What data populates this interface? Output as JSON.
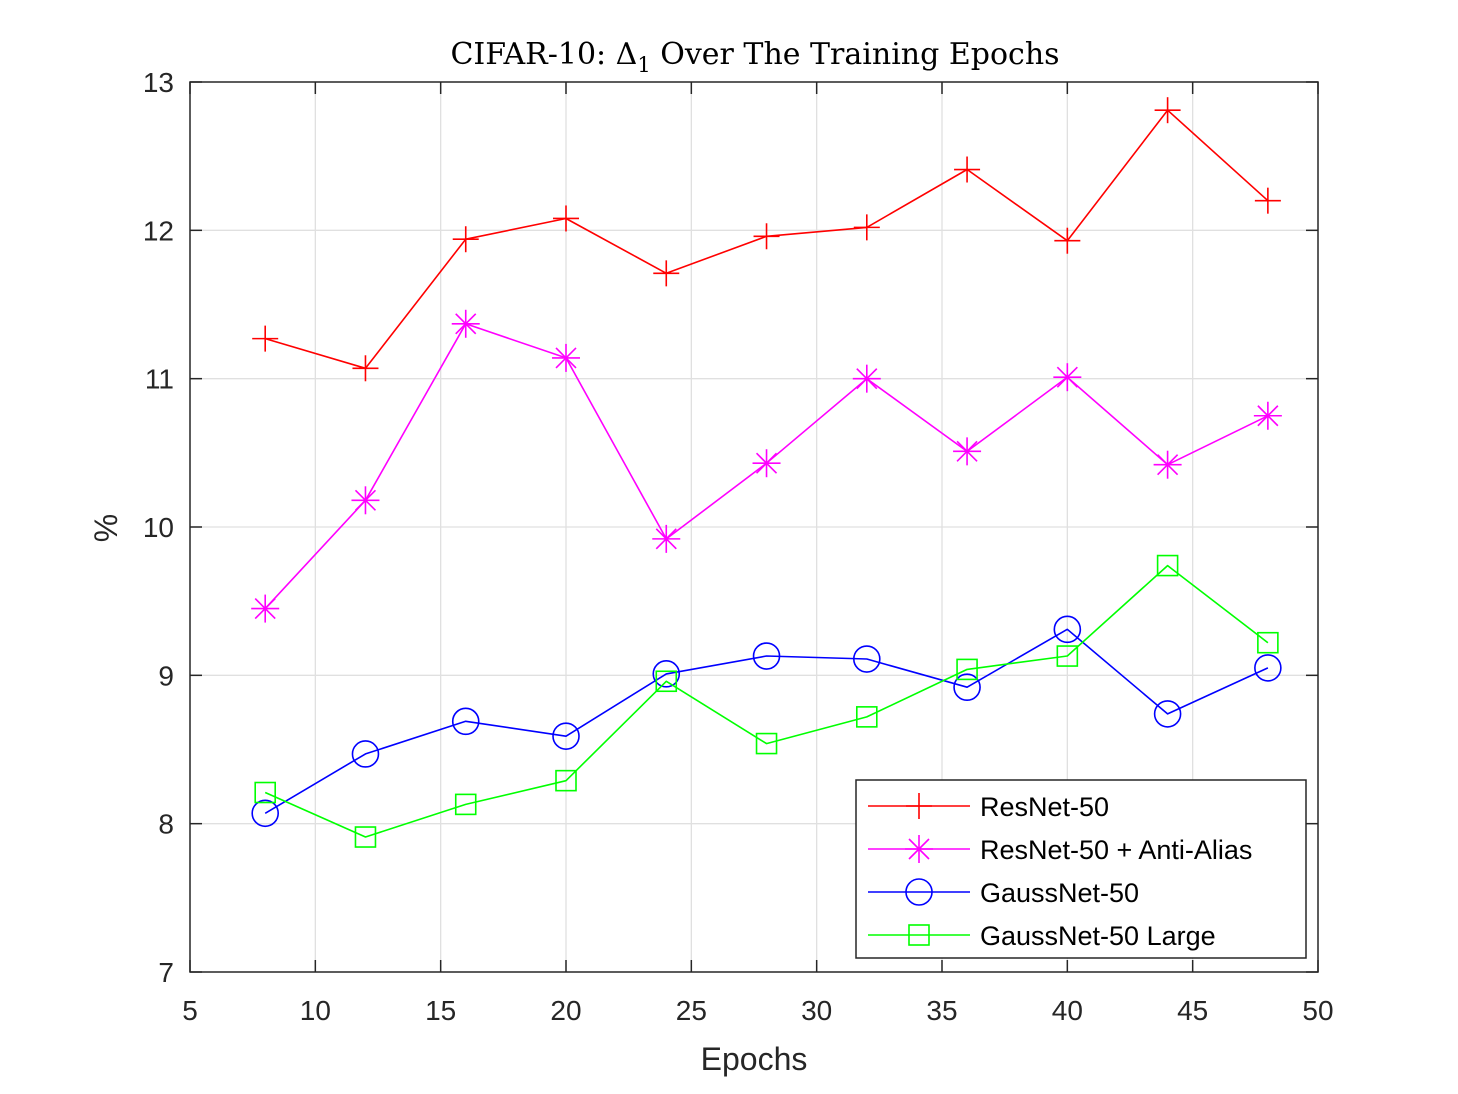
{
  "chart_data": {
    "type": "line",
    "title_prefix": "CIFAR-10: Δ",
    "title_subscript": "1",
    "title_suffix": " Over The Training Epochs",
    "xlabel": "Epochs",
    "ylabel": "%",
    "xlim": [
      5,
      50
    ],
    "ylim": [
      7,
      13
    ],
    "xticks": [
      "5",
      "10",
      "15",
      "20",
      "25",
      "30",
      "35",
      "40",
      "45",
      "50"
    ],
    "yticks": [
      "7",
      "8",
      "9",
      "10",
      "11",
      "12",
      "13"
    ],
    "grid": true,
    "legend_position": "bottom-right",
    "x": [
      8,
      12,
      16,
      20,
      24,
      28,
      32,
      36,
      40,
      44,
      48
    ],
    "series": [
      {
        "name": "ResNet-50",
        "color": "#ff0000",
        "marker": "plus",
        "values": [
          11.27,
          11.07,
          11.94,
          12.08,
          11.71,
          11.96,
          12.02,
          12.41,
          11.93,
          12.81,
          12.2
        ]
      },
      {
        "name": "ResNet-50 + Anti-Alias",
        "color": "#ff00ff",
        "marker": "asterisk",
        "values": [
          9.45,
          10.18,
          11.37,
          11.14,
          9.92,
          10.43,
          11.0,
          10.51,
          11.01,
          10.42,
          10.75
        ]
      },
      {
        "name": "GaussNet-50",
        "color": "#0000ff",
        "marker": "circle",
        "values": [
          8.07,
          8.47,
          8.69,
          8.59,
          9.01,
          9.13,
          9.11,
          8.92,
          9.31,
          8.74,
          9.05
        ]
      },
      {
        "name": "GaussNet-50 Large",
        "color": "#00ff00",
        "marker": "square",
        "values": [
          8.21,
          7.91,
          8.13,
          8.29,
          8.96,
          8.54,
          8.72,
          9.04,
          9.13,
          9.74,
          9.22
        ]
      }
    ]
  }
}
